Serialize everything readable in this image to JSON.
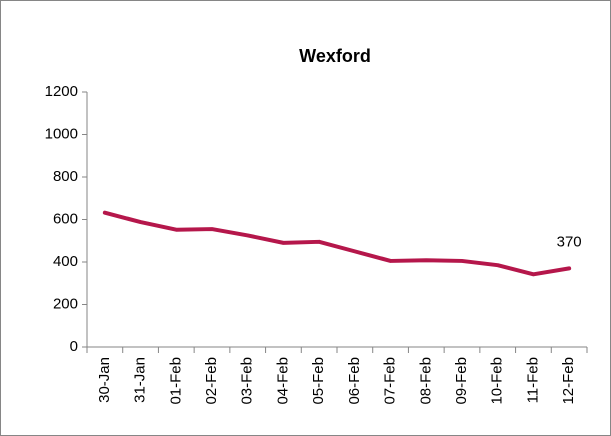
{
  "chart_data": {
    "type": "line",
    "title": "Wexford",
    "categories": [
      "30-Jan",
      "31-Jan",
      "01-Feb",
      "02-Feb",
      "03-Feb",
      "04-Feb",
      "05-Feb",
      "06-Feb",
      "07-Feb",
      "08-Feb",
      "09-Feb",
      "10-Feb",
      "11-Feb",
      "12-Feb"
    ],
    "series": [
      {
        "name": "Wexford",
        "color": "#b5174b",
        "values": [
          632,
          588,
          552,
          555,
          525,
          490,
          495,
          450,
          405,
          408,
          405,
          385,
          342,
          370
        ]
      }
    ],
    "ylim": [
      0,
      1200
    ],
    "yticks": [
      0,
      200,
      400,
      600,
      800,
      1000,
      1200
    ],
    "grid": false
  }
}
